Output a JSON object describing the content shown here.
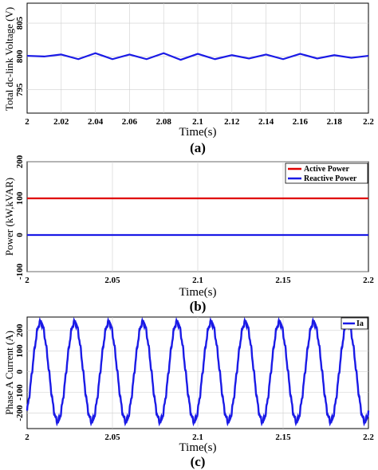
{
  "chart_data": [
    {
      "type": "line",
      "panel_label": "(a)",
      "title": "",
      "xlabel": "Time(s)",
      "ylabel": "Total dc-link Voltage  (V)",
      "xlim": [
        2,
        2.2
      ],
      "ylim": [
        791.5,
        808
      ],
      "xticks": [
        "2",
        "2.02",
        "2.04",
        "2.06",
        "2.08",
        "2.1",
        "2.12",
        "2.14",
        "2.16",
        "2.18",
        "2.2"
      ],
      "yticks": [
        "795",
        "800",
        "805"
      ],
      "grid": true,
      "x": [
        2.0,
        2.01,
        2.02,
        2.03,
        2.04,
        2.05,
        2.06,
        2.07,
        2.08,
        2.09,
        2.1,
        2.11,
        2.12,
        2.13,
        2.14,
        2.15,
        2.16,
        2.17,
        2.18,
        2.19,
        2.2
      ],
      "series": [
        {
          "name": "",
          "color": "#1a1ae6",
          "values": [
            800.1,
            800.0,
            800.3,
            799.6,
            800.5,
            799.6,
            800.3,
            799.6,
            800.5,
            799.5,
            800.4,
            799.6,
            800.2,
            799.7,
            800.3,
            799.6,
            800.4,
            799.7,
            800.2,
            799.8,
            800.1
          ]
        }
      ]
    },
    {
      "type": "line",
      "panel_label": "(b)",
      "title": "",
      "xlabel": "Time(s)",
      "ylabel": "Power (kW,kVAR)",
      "xlim": [
        2,
        2.2
      ],
      "ylim": [
        -100,
        200
      ],
      "xticks": [
        "2",
        "2.05",
        "2.1",
        "2.15",
        "2.2"
      ],
      "yticks": [
        "-100",
        "0",
        "100",
        "200"
      ],
      "grid": true,
      "legend_position": "top-right",
      "x": [
        2.0,
        2.05,
        2.1,
        2.15,
        2.2
      ],
      "series": [
        {
          "name": "Active Power",
          "color": "#e00000",
          "values": [
            100,
            100,
            100,
            100,
            100
          ]
        },
        {
          "name": "Reactive Power",
          "color": "#1a1ae6",
          "values": [
            0,
            0,
            0,
            0,
            0
          ]
        }
      ]
    },
    {
      "type": "line",
      "panel_label": "(c)",
      "title": "",
      "xlabel": "Time(s)",
      "ylabel": "Phase A Current  (A)",
      "xlim": [
        2,
        2.2
      ],
      "ylim": [
        -275,
        265
      ],
      "xticks": [
        "2",
        "2.05",
        "2.1",
        "2.15",
        "2.2"
      ],
      "yticks": [
        "-200",
        "-100",
        "0",
        "100",
        "200"
      ],
      "grid": true,
      "legend_position": "top-right",
      "waveform": "sinusoid",
      "amplitude": 240,
      "frequency_hz": 50,
      "series": [
        {
          "name": "Ia",
          "color": "#1a1ae6"
        }
      ]
    }
  ]
}
